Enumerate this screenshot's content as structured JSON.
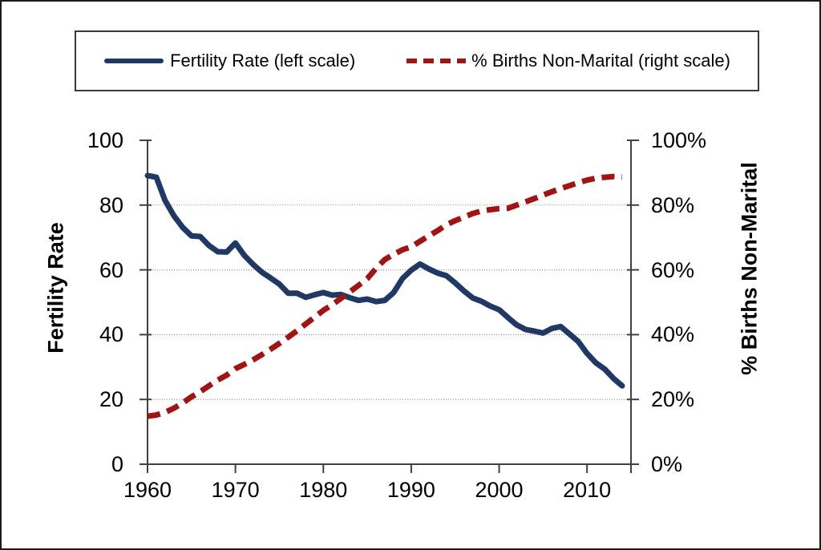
{
  "figure": {
    "background": "#ffffff",
    "border_color": "#1a1a1a"
  },
  "legend": {
    "items": [
      {
        "label": "Fertility Rate (left scale)",
        "style": "solid",
        "color": "#1f3864"
      },
      {
        "label": "% Births Non-Marital (right scale)",
        "style": "dashed",
        "color": "#a01414"
      }
    ]
  },
  "chart_data": {
    "type": "line",
    "title": "",
    "grid": {
      "y_values": [
        20,
        40,
        60,
        80
      ],
      "style": "dotted",
      "color": "#888888"
    },
    "x_axis": {
      "min": 1960,
      "max": 2015,
      "tick_values": [
        1960,
        1970,
        1980,
        1990,
        2000,
        2010
      ],
      "tick_labels": [
        "1960",
        "1970",
        "1980",
        "1990",
        "2000",
        "2010"
      ]
    },
    "left_axis": {
      "title": "Fertility Rate",
      "min": 0,
      "max": 100,
      "tick_values": [
        0,
        20,
        40,
        60,
        80,
        100
      ],
      "tick_labels": [
        "0",
        "20",
        "40",
        "60",
        "80",
        "100"
      ]
    },
    "right_axis": {
      "title": "% Births Non-Marital",
      "min": 0,
      "max": 100,
      "tick_values": [
        0,
        20,
        40,
        60,
        80,
        100
      ],
      "tick_labels": [
        "0%",
        "20%",
        "40%",
        "60%",
        "80%",
        "100%"
      ]
    },
    "x": [
      1960,
      1961,
      1962,
      1963,
      1964,
      1965,
      1966,
      1967,
      1968,
      1969,
      1970,
      1971,
      1972,
      1973,
      1974,
      1975,
      1976,
      1977,
      1978,
      1979,
      1980,
      1981,
      1982,
      1983,
      1984,
      1985,
      1986,
      1987,
      1988,
      1989,
      1990,
      1991,
      1992,
      1993,
      1994,
      1995,
      1996,
      1997,
      1998,
      1999,
      2000,
      2001,
      2002,
      2003,
      2004,
      2005,
      2006,
      2007,
      2008,
      2009,
      2010,
      2011,
      2012,
      2013,
      2014
    ],
    "series": [
      {
        "name": "Fertility Rate (left scale)",
        "axis": "left",
        "color": "#1f3864",
        "line_style": "solid",
        "values": [
          89.1,
          88.6,
          81.4,
          76.7,
          73.1,
          70.5,
          70.3,
          67.5,
          65.6,
          65.5,
          68.3,
          64.5,
          61.7,
          59.3,
          57.5,
          55.6,
          52.8,
          52.8,
          51.5,
          52.3,
          53.0,
          52.2,
          52.4,
          51.4,
          50.6,
          51.0,
          50.2,
          50.6,
          53.0,
          57.3,
          59.9,
          61.8,
          60.3,
          59.0,
          58.2,
          56.0,
          53.5,
          51.3,
          50.3,
          48.8,
          47.7,
          45.3,
          43.0,
          41.6,
          41.1,
          40.5,
          41.9,
          42.5,
          40.2,
          37.9,
          34.2,
          31.3,
          29.4,
          26.5,
          24.2
        ]
      },
      {
        "name": "% Births Non-Marital (right scale)",
        "axis": "right",
        "color": "#a01414",
        "line_style": "dashed",
        "values": [
          14.8,
          15.2,
          16.0,
          17.3,
          18.9,
          20.8,
          22.4,
          24.2,
          26.0,
          27.5,
          29.5,
          30.8,
          32.2,
          33.8,
          35.5,
          37.3,
          39.2,
          41.2,
          43.3,
          45.4,
          47.5,
          49.2,
          51.2,
          53.2,
          55.2,
          57.3,
          60.5,
          63.2,
          64.8,
          66.2,
          67.1,
          68.8,
          70.5,
          72.1,
          73.9,
          75.2,
          76.3,
          77.4,
          78.2,
          78.6,
          78.9,
          79.0,
          80.0,
          81.0,
          82.0,
          83.1,
          84.1,
          85.1,
          86.0,
          86.9,
          87.7,
          88.3,
          88.6,
          88.8,
          88.7
        ]
      }
    ]
  }
}
